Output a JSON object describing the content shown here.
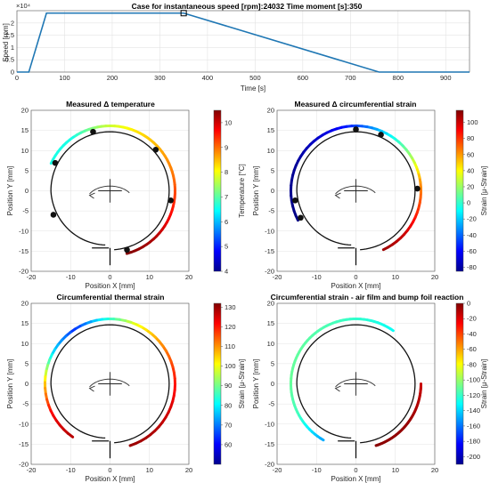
{
  "figure_title": "Case for instantaneous speed [rpm]:24032 Time moment [s]:350",
  "chart_data": [
    {
      "id": "speed",
      "type": "line",
      "title": "Case for instantaneous speed [rpm]:24032 Time moment [s]:350",
      "xlabel": "Time [s]",
      "ylabel": "Speed [rpm]",
      "exponent_label": "×10⁴",
      "xlim": [
        0,
        950
      ],
      "ylim": [
        0,
        2.5
      ],
      "xticks": [
        0,
        100,
        200,
        300,
        400,
        500,
        600,
        700,
        800,
        900
      ],
      "yticks": [
        0,
        0.5,
        1,
        1.5,
        2
      ],
      "grid": true,
      "series": [
        {
          "x": [
            0,
            25,
            62,
            350,
            760,
            950
          ],
          "y": [
            0,
            0,
            2.4,
            2.4,
            0,
            0
          ],
          "color": "#1f77b4"
        }
      ],
      "marker": {
        "x": 350,
        "y": 2.4
      }
    },
    {
      "id": "temperature",
      "type": "polar-strip",
      "title": "Measured Δ temperature",
      "xlabel": "Position X [mm]",
      "ylabel": "Position Y [mm]",
      "colorbar_label": "Temperature [°C]",
      "xlim": [
        -20,
        20
      ],
      "ylim": [
        -20,
        20
      ],
      "xticks": [
        -20,
        -10,
        0,
        10,
        20
      ],
      "yticks": [
        -20,
        -15,
        -10,
        -5,
        0,
        5,
        10,
        15,
        20
      ],
      "cbar_range": [
        4,
        10.5
      ],
      "cbar_ticks": [
        4,
        5,
        6,
        7,
        8,
        9,
        10
      ],
      "colormap": "jet",
      "strip": {
        "from_deg": -75,
        "to_deg": 155,
        "values": [
          10.5,
          10.2,
          9.6,
          9,
          8.6,
          8.2,
          7.6,
          6.6,
          6.6
        ]
      },
      "sensor_angles_deg": [
        -74,
        -9,
        42,
        106,
        153,
        203
      ]
    },
    {
      "id": "strain",
      "type": "polar-strip",
      "title": "Measured Δ circumferential strain",
      "xlabel": "Position X [mm]",
      "ylabel": "Position Y [mm]",
      "colorbar_label": "Strain [μ-Strain]",
      "xlim": [
        -20,
        20
      ],
      "ylim": [
        -20,
        20
      ],
      "xticks": [
        -20,
        -10,
        0,
        10,
        20
      ],
      "yticks": [
        -20,
        -15,
        -10,
        -5,
        0,
        5,
        10,
        15,
        20
      ],
      "cbar_range": [
        -85,
        115
      ],
      "cbar_ticks": [
        -80,
        -60,
        -40,
        -20,
        0,
        20,
        40,
        60,
        80,
        100
      ],
      "colormap": "jet",
      "strip": {
        "from_deg": -65,
        "to_deg": 207,
        "values": [
          110,
          100,
          80,
          60,
          20,
          -10,
          -40,
          -62,
          -72,
          -80,
          -82,
          -84
        ]
      },
      "sensor_angles_deg": [
        2,
        66,
        90,
        189,
        206
      ]
    },
    {
      "id": "thermal",
      "type": "polar-strip",
      "title": "Circumferential thermal strain",
      "xlabel": "Position X [mm]",
      "ylabel": "Position Y [mm]",
      "colorbar_label": "Strain [μ-Strain]",
      "xlim": [
        -20,
        20
      ],
      "ylim": [
        -20,
        20
      ],
      "xticks": [
        -20,
        -10,
        0,
        10,
        20
      ],
      "yticks": [
        -20,
        -15,
        -10,
        -5,
        0,
        5,
        10,
        15,
        20
      ],
      "cbar_range": [
        50,
        132
      ],
      "cbar_ticks": [
        60,
        70,
        80,
        90,
        100,
        110,
        120,
        130
      ],
      "colormap": "jet",
      "strip": {
        "from_deg": -72,
        "to_deg": 235,
        "values": [
          130,
          128,
          124,
          118,
          110,
          100,
          82,
          64,
          78,
          105,
          122,
          128
        ]
      }
    },
    {
      "id": "airfilm",
      "type": "polar-strip",
      "title": "Circumferential strain - air film and bump foil reaction",
      "xlabel": "Position X [mm]",
      "ylabel": "Position Y [mm]",
      "colorbar_label": "Strain [μ-Strain]",
      "xlim": [
        -20,
        20
      ],
      "ylim": [
        -20,
        20
      ],
      "xticks": [
        -20,
        -10,
        0,
        10,
        20
      ],
      "yticks": [
        -20,
        -15,
        -10,
        -5,
        0,
        5,
        10,
        15,
        20
      ],
      "cbar_range": [
        -210,
        0
      ],
      "cbar_ticks": [
        -200,
        -180,
        -160,
        -140,
        -120,
        -100,
        -80,
        -60,
        -40,
        -20,
        0
      ],
      "colormap": "jet",
      "strip": {
        "from_deg": -72,
        "to_deg": 0,
        "values": [
          -2,
          -5,
          -15
        ]
      },
      "strip2": {
        "from_deg": 55,
        "to_deg": 240,
        "values": [
          -130,
          -122,
          -116,
          -112,
          -110,
          -118,
          -150
        ]
      }
    }
  ]
}
